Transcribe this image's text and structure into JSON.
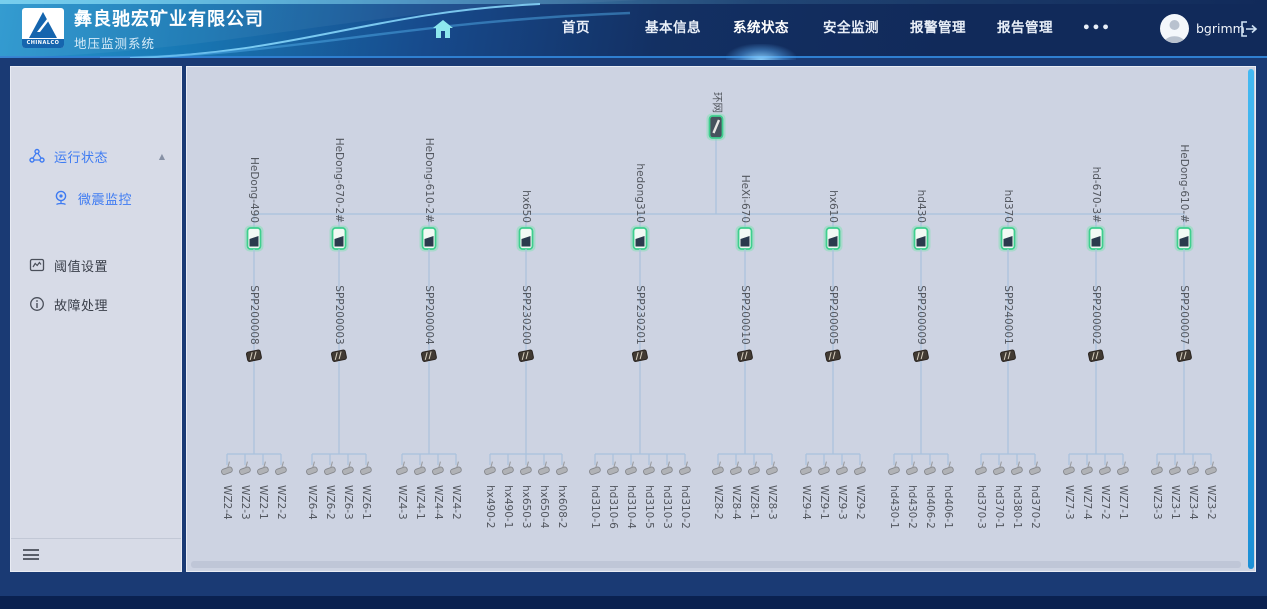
{
  "header": {
    "logo_text": "CHINALCO",
    "company": "彝良驰宏矿业有限公司",
    "subtitle": "地压监测系统",
    "nav": {
      "home": "首页",
      "basic_info": "基本信息",
      "system_status": "系统状态",
      "safety_monitor": "安全监测",
      "alarm_mgmt": "报警管理",
      "report_mgmt": "报告管理",
      "more": "•••"
    },
    "active_nav": "系统状态",
    "username": "bgrimm"
  },
  "sidebar": {
    "run_status": "运行状态",
    "micro_seismic": "微震监控",
    "threshold": "阈值设置",
    "fault": "故障处理",
    "active_item": "微震监控"
  },
  "topology": {
    "root_label": "环网",
    "branches": [
      {
        "name": "HeDong-490",
        "station": "SPP200008",
        "sensors": [
          "WZ2-4",
          "WZ2-3",
          "WZ2-1",
          "WZ2-2"
        ]
      },
      {
        "name": "HeDong-670-2#",
        "station": "SPP200003",
        "sensors": [
          "WZ6-4",
          "WZ6-2",
          "WZ6-3",
          "WZ6-1"
        ]
      },
      {
        "name": "HeDong-610-2#",
        "station": "SPP200004",
        "sensors": [
          "WZ4-3",
          "WZ4-1",
          "WZ4-4",
          "WZ4-2"
        ]
      },
      {
        "name": "hx650",
        "station": "SPP230200",
        "sensors": [
          "hx490-2",
          "hx490-1",
          "hx650-3",
          "hx650-4",
          "hx608-2"
        ]
      },
      {
        "name": "hedong310",
        "station": "SPP230201",
        "sensors": [
          "hd310-1",
          "hd310-6",
          "hd310-4",
          "hd310-5",
          "hd310-3",
          "hd310-2"
        ]
      },
      {
        "name": "HeXi-670",
        "station": "SPP200010",
        "sensors": [
          "WZ8-2",
          "WZ8-4",
          "WZ8-1",
          "WZ8-3"
        ]
      },
      {
        "name": "hx610",
        "station": "SPP200005",
        "sensors": [
          "WZ9-4",
          "WZ9-1",
          "WZ9-3",
          "WZ9-2"
        ]
      },
      {
        "name": "hd430",
        "station": "SPP200009",
        "sensors": [
          "hd430-1",
          "hd430-2",
          "hd406-2",
          "hd406-1"
        ]
      },
      {
        "name": "hd370",
        "station": "SPP240001",
        "sensors": [
          "hd370-3",
          "hd370-1",
          "hd380-1",
          "hd370-2"
        ]
      },
      {
        "name": "hd-670-3#",
        "station": "SPP200002",
        "sensors": [
          "WZ7-3",
          "WZ7-4",
          "WZ7-2",
          "WZ7-1"
        ]
      },
      {
        "name": "HeDong-610-#",
        "station": "SPP200007",
        "sensors": [
          "WZ3-3",
          "WZ3-1",
          "WZ3-4",
          "WZ3-2"
        ]
      }
    ]
  },
  "colors": {
    "header_blue": "#1d7fc2",
    "navy_bg": "#1a3a74",
    "panel_bg": "#cdd3e2",
    "sidebar_bg": "#d7dbe7",
    "accent_blue": "#3e7bf2",
    "line_blue": "#a9c2dd",
    "device_green": "#3ecf8e",
    "scrollbar_blue": "#2aa4e4"
  }
}
